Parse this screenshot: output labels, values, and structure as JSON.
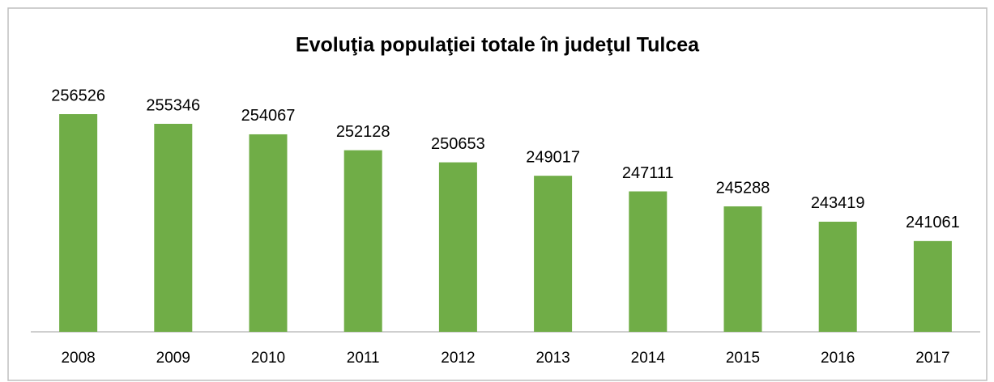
{
  "chart_data": {
    "type": "bar",
    "title": "Evoluţia populaţiei totale în judeţul Tulcea",
    "categories": [
      "2008",
      "2009",
      "2010",
      "2011",
      "2012",
      "2013",
      "2014",
      "2015",
      "2016",
      "2017"
    ],
    "values": [
      256526,
      255346,
      254067,
      252128,
      250653,
      249017,
      247111,
      245288,
      243419,
      241061
    ],
    "color": "#70ad47",
    "ylim": [
      230000,
      260000
    ]
  }
}
